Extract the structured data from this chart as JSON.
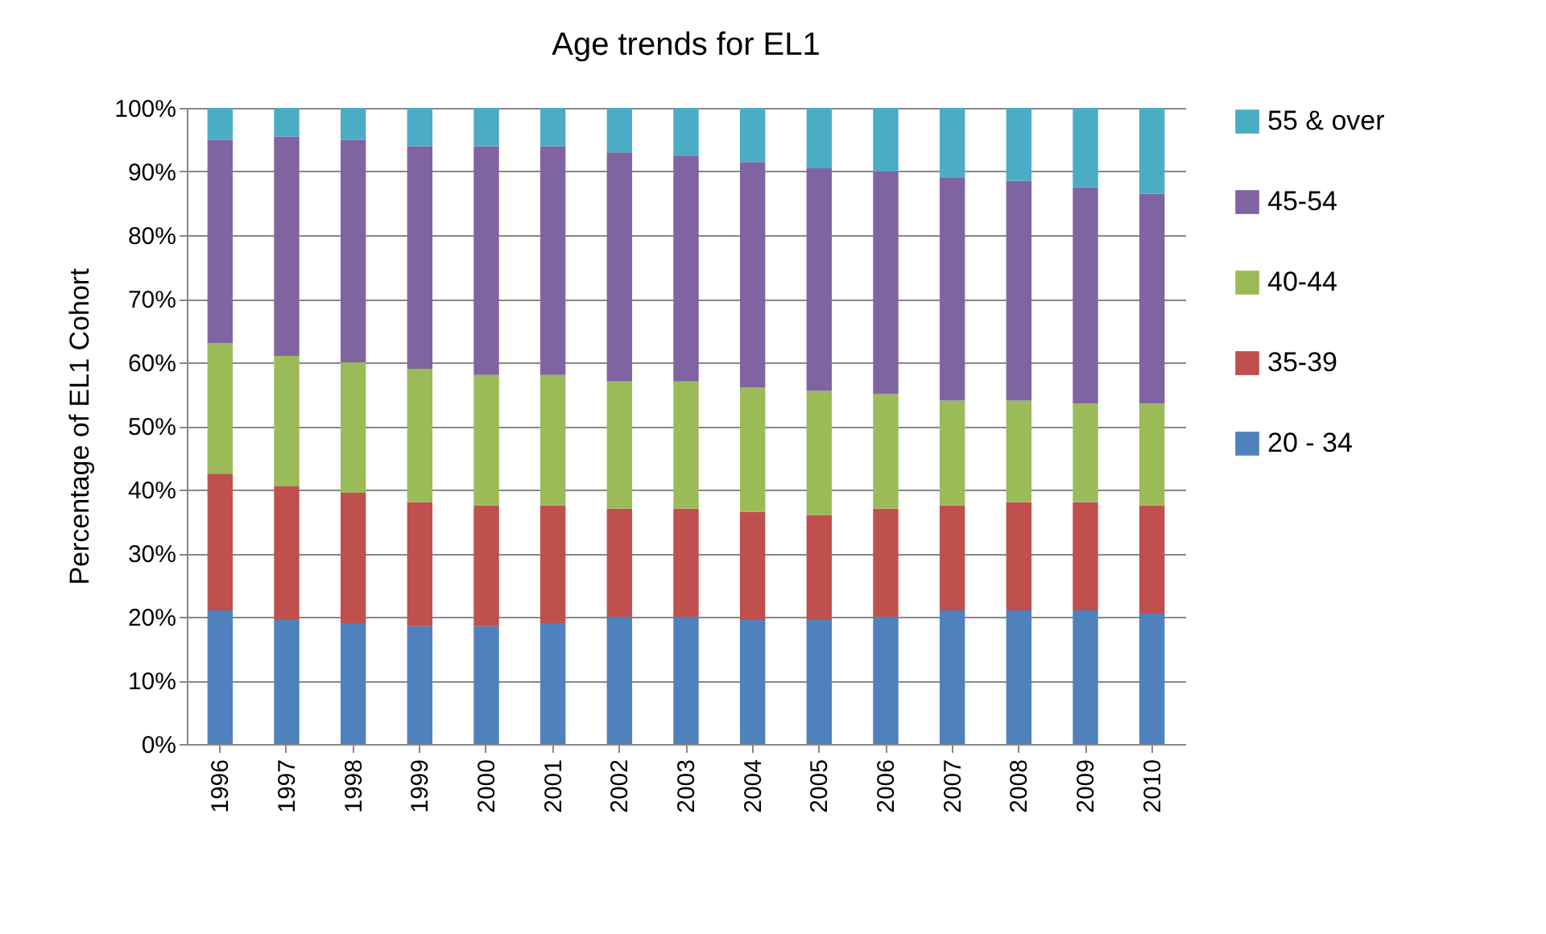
{
  "chart_data": {
    "type": "bar",
    "title": "Age trends for EL1",
    "ylabel": "Percentage of EL1 Cohort",
    "stacked": true,
    "legend": "right",
    "grid": "y",
    "categories": [
      "1996",
      "1997",
      "1998",
      "1999",
      "2000",
      "2001",
      "2002",
      "2003",
      "2004",
      "2005",
      "2006",
      "2007",
      "2008",
      "2009",
      "2010"
    ],
    "ylim": [
      0,
      100
    ],
    "yticks": [
      {
        "value": 0,
        "label": "0%"
      },
      {
        "value": 10,
        "label": "10%"
      },
      {
        "value": 20,
        "label": "20%"
      },
      {
        "value": 30,
        "label": "30%"
      },
      {
        "value": 40,
        "label": "40%"
      },
      {
        "value": 50,
        "label": "50%"
      },
      {
        "value": 60,
        "label": "60%"
      },
      {
        "value": 70,
        "label": "70%"
      },
      {
        "value": 80,
        "label": "80%"
      },
      {
        "value": 90,
        "label": "90%"
      },
      {
        "value": 100,
        "label": "100%"
      }
    ],
    "series": [
      {
        "name": "20 - 34",
        "color": "#4f81bd",
        "values": [
          21,
          19.5,
          19,
          18.5,
          18.5,
          19,
          20,
          20,
          19.5,
          19.5,
          20,
          21,
          21,
          21,
          20.5
        ]
      },
      {
        "name": "35-39",
        "color": "#c0504d",
        "values": [
          21.5,
          21,
          20.5,
          19.5,
          19,
          18.5,
          17,
          17,
          17,
          16.5,
          17,
          16.5,
          17,
          17,
          17
        ]
      },
      {
        "name": "40-44",
        "color": "#9bbb59",
        "values": [
          20.5,
          20.5,
          20.5,
          21,
          20.5,
          20.5,
          20,
          20,
          19.5,
          19.5,
          18,
          16.5,
          16,
          15.5,
          16
        ]
      },
      {
        "name": "45-54",
        "color": "#8064a2",
        "values": [
          32,
          34.5,
          35,
          35,
          36,
          36,
          36,
          35.5,
          35.5,
          35,
          35,
          35,
          34.5,
          34,
          33
        ]
      },
      {
        "name": "55 & over",
        "color": "#4bacc6",
        "values": [
          5,
          4.5,
          5,
          6,
          6,
          6,
          7,
          7.5,
          8.5,
          9.5,
          10,
          11,
          11.5,
          12.5,
          13.5
        ]
      }
    ]
  }
}
